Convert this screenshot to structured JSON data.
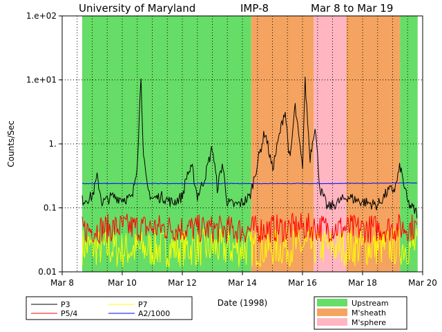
{
  "header": {
    "institution": "University of Maryland",
    "spacecraft": "IMP-8",
    "range": "Mar 8 to Mar 19"
  },
  "chart_data": {
    "type": "line",
    "xlabel": "Date (1998)",
    "ylabel": "Counts/Sec",
    "y_scale": "log",
    "ylim": [
      0.01,
      100
    ],
    "xlim": [
      "1998-03-08",
      "1998-03-20"
    ],
    "yticks": [
      {
        "value": 0.01,
        "label": "0.01"
      },
      {
        "value": 0.1,
        "label": "0.1"
      },
      {
        "value": 1,
        "label": "1."
      },
      {
        "value": 10,
        "label": "1.e+01"
      },
      {
        "value": 100,
        "label": "1.e+02"
      }
    ],
    "xticks": [
      {
        "value": "1998-03-08",
        "label": "Mar 8"
      },
      {
        "value": "1998-03-10",
        "label": "Mar 10"
      },
      {
        "value": "1998-03-12",
        "label": "Mar 12"
      },
      {
        "value": "1998-03-14",
        "label": "Mar 14"
      },
      {
        "value": "1998-03-16",
        "label": "Mar 16"
      },
      {
        "value": "1998-03-18",
        "label": "Mar 18"
      },
      {
        "value": "1998-03-20",
        "label": "Mar 20"
      }
    ],
    "grid": "dotted, every 12 hours and each decade",
    "regions": [
      {
        "type": "Upstream",
        "start": "1998-03-08T16:00",
        "end": "1998-03-14T07:00"
      },
      {
        "type": "M'sheath",
        "start": "1998-03-14T07:00",
        "end": "1998-03-16T09:00"
      },
      {
        "type": "M'sphere",
        "start": "1998-03-16T09:00",
        "end": "1998-03-17T11:00"
      },
      {
        "type": "M'sheath",
        "start": "1998-03-17T11:00",
        "end": "1998-03-19T06:00"
      },
      {
        "type": "Upstream",
        "start": "1998-03-19T06:00",
        "end": "1998-03-19T20:00"
      }
    ],
    "region_colors": {
      "Upstream": "#66dd66",
      "M'sheath": "#f4a460",
      "M'sphere": "#ffb6c1"
    },
    "series": [
      {
        "name": "P3",
        "color": "#000000",
        "points": [
          [
            "1998-03-08T16:00",
            0.13
          ],
          [
            "1998-03-09T00:00",
            0.15
          ],
          [
            "1998-03-09T04:00",
            0.3
          ],
          [
            "1998-03-09T08:00",
            0.12
          ],
          [
            "1998-03-09T16:00",
            0.15
          ],
          [
            "1998-03-10T00:00",
            0.14
          ],
          [
            "1998-03-10T08:00",
            0.14
          ],
          [
            "1998-03-10T12:00",
            0.5
          ],
          [
            "1998-03-10T15:00",
            12
          ],
          [
            "1998-03-10T17:00",
            0.6
          ],
          [
            "1998-03-10T20:00",
            0.2
          ],
          [
            "1998-03-11T00:00",
            0.14
          ],
          [
            "1998-03-11T08:00",
            0.15
          ],
          [
            "1998-03-11T16:00",
            0.12
          ],
          [
            "1998-03-12T00:00",
            0.15
          ],
          [
            "1998-03-12T04:00",
            0.35
          ],
          [
            "1998-03-12T08:00",
            0.4
          ],
          [
            "1998-03-12T12:00",
            0.15
          ],
          [
            "1998-03-12T18:00",
            0.3
          ],
          [
            "1998-03-13T00:00",
            0.9
          ],
          [
            "1998-03-13T04:00",
            0.2
          ],
          [
            "1998-03-13T08:00",
            0.5
          ],
          [
            "1998-03-13T12:00",
            0.12
          ],
          [
            "1998-03-13T18:00",
            0.11
          ],
          [
            "1998-03-14T00:00",
            0.12
          ],
          [
            "1998-03-14T06:00",
            0.15
          ],
          [
            "1998-03-14T12:00",
            0.5
          ],
          [
            "1998-03-14T18:00",
            1.6
          ],
          [
            "1998-03-15T00:00",
            0.4
          ],
          [
            "1998-03-15T06:00",
            1.5
          ],
          [
            "1998-03-15T10:00",
            3.5
          ],
          [
            "1998-03-15T14:00",
            0.5
          ],
          [
            "1998-03-15T18:00",
            4
          ],
          [
            "1998-03-16T00:00",
            0.4
          ],
          [
            "1998-03-16T02:00",
            10
          ],
          [
            "1998-03-16T06:00",
            0.6
          ],
          [
            "1998-03-16T10:00",
            2
          ],
          [
            "1998-03-16T14:00",
            0.2
          ],
          [
            "1998-03-16T20:00",
            0.1
          ],
          [
            "1998-03-17T04:00",
            0.12
          ],
          [
            "1998-03-17T12:00",
            0.15
          ],
          [
            "1998-03-17T20:00",
            0.13
          ],
          [
            "1998-03-18T04:00",
            0.12
          ],
          [
            "1998-03-18T12:00",
            0.11
          ],
          [
            "1998-03-18T20:00",
            0.18
          ],
          [
            "1998-03-19T02:00",
            0.2
          ],
          [
            "1998-03-19T06:00",
            0.45
          ],
          [
            "1998-03-19T12:00",
            0.12
          ],
          [
            "1998-03-19T20:00",
            0.08
          ]
        ]
      },
      {
        "name": "P5/4",
        "color": "#ff0000",
        "points": [
          [
            "1998-03-08T16:00",
            0.045
          ],
          [
            "1998-03-10T00:00",
            0.05
          ],
          [
            "1998-03-12T00:00",
            0.048
          ],
          [
            "1998-03-14T00:00",
            0.045
          ],
          [
            "1998-03-16T00:00",
            0.05
          ],
          [
            "1998-03-18T00:00",
            0.047
          ],
          [
            "1998-03-19T20:00",
            0.05
          ]
        ]
      },
      {
        "name": "P7",
        "color": "#ffff00",
        "points": [
          [
            "1998-03-08T16:00",
            0.025
          ],
          [
            "1998-03-10T00:00",
            0.022
          ],
          [
            "1998-03-12T00:00",
            0.024
          ],
          [
            "1998-03-14T00:00",
            0.023
          ],
          [
            "1998-03-16T00:00",
            0.025
          ],
          [
            "1998-03-18T00:00",
            0.024
          ],
          [
            "1998-03-19T20:00",
            0.025
          ]
        ]
      },
      {
        "name": "A2/1000",
        "color": "#0000ff",
        "points": [
          [
            "1998-03-08T16:00",
            0.24
          ],
          [
            "1998-03-11T00:00",
            0.24
          ],
          [
            "1998-03-14T00:00",
            0.24
          ],
          [
            "1998-03-17T00:00",
            0.24
          ],
          [
            "1998-03-19T20:00",
            0.245
          ]
        ]
      }
    ]
  },
  "legend_series": [
    {
      "name": "P3",
      "color": "#000000"
    },
    {
      "name": "P7",
      "color": "#ffff00"
    },
    {
      "name": "P5/4",
      "color": "#ff0000"
    },
    {
      "name": "A2/1000",
      "color": "#0000ff"
    }
  ],
  "legend_regions": [
    {
      "name": "Upstream",
      "color": "#66dd66"
    },
    {
      "name": "M'sheath",
      "color": "#f4a460"
    },
    {
      "name": "M'sphere",
      "color": "#ffb6c1"
    }
  ]
}
